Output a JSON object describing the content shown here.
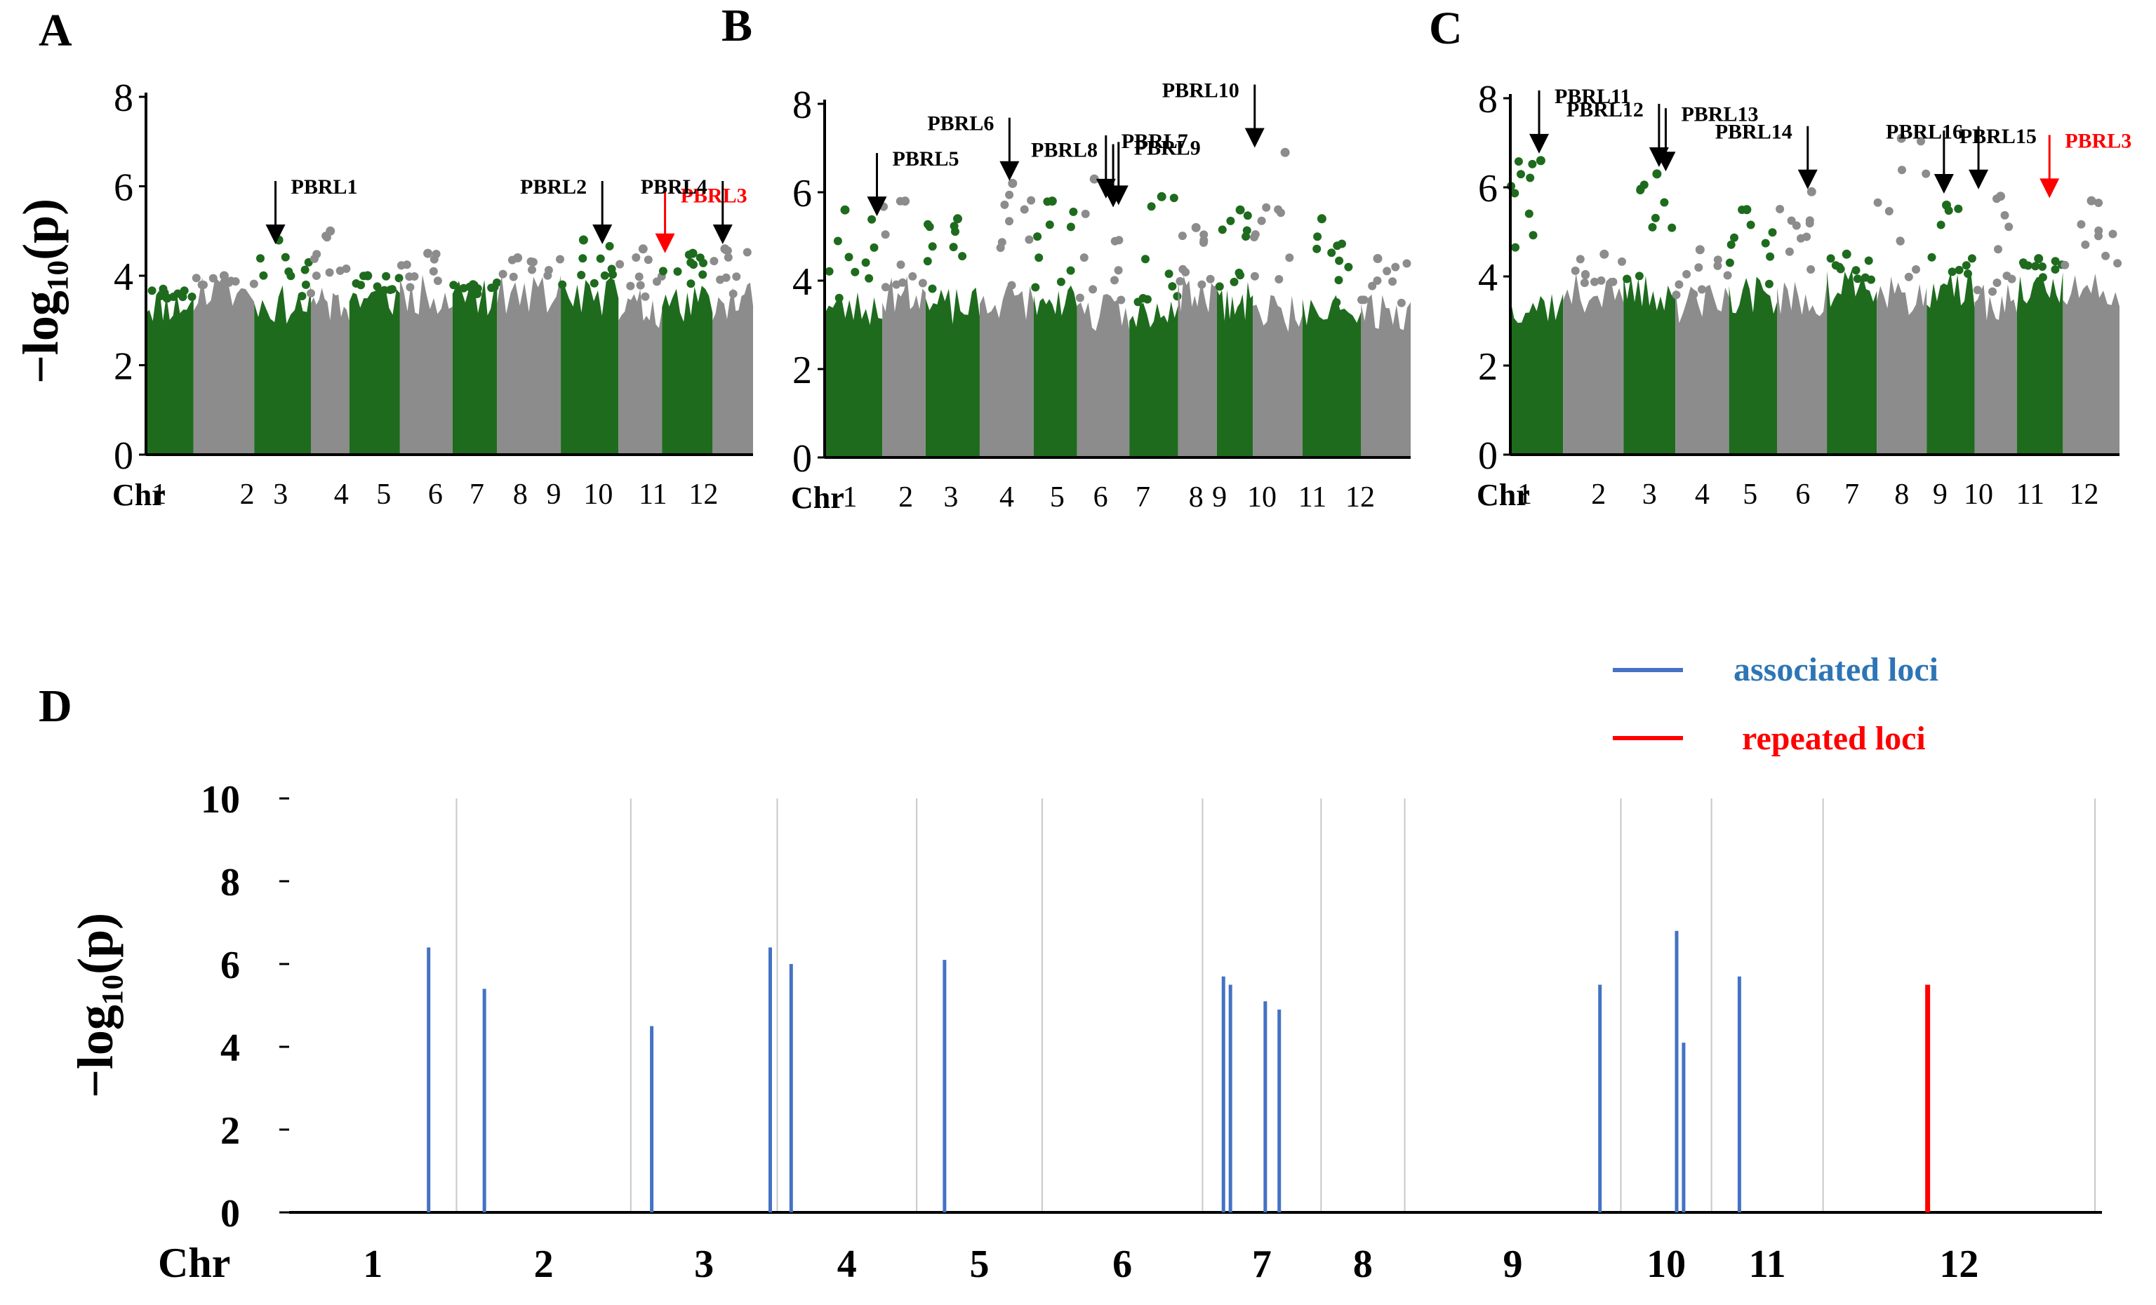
{
  "chart_data": [
    {
      "panel": "A",
      "type": "scatter",
      "subtype": "manhattan",
      "ylabel": "−log₁₀(p)",
      "ylim": [
        0,
        8
      ],
      "yticks": [
        "0",
        "2",
        "4",
        "6",
        "8"
      ],
      "xlabel": "Chr",
      "chromosomes": [
        "1",
        "2",
        "3",
        "4",
        "5",
        "6",
        "7",
        "8",
        "9",
        "10",
        "11",
        "12"
      ],
      "chr_colors": [
        "green",
        "gray",
        "green",
        "gray",
        "green",
        "gray",
        "green",
        "gray",
        "green",
        "gray",
        "green",
        "gray"
      ],
      "chr_bounds": [
        0.35,
        0.82,
        1.42,
        1.98,
        2.36,
        2.86,
        3.38,
        3.82,
        4.45,
        5.02,
        5.45,
        5.95,
        6.35
      ],
      "chr_label_pos": [
        0.48,
        1.35,
        1.68,
        2.28,
        2.7,
        3.21,
        3.62,
        4.05,
        4.38,
        4.82,
        5.36,
        5.86
      ],
      "chr_max": [
        3.5,
        4.0,
        4.8,
        5.0,
        4.0,
        4.5,
        3.6,
        4.4,
        4.8,
        4.6,
        4.5,
        4.6
      ],
      "annotations": [
        {
          "label": "PBRL1",
          "x": 1.63,
          "y": 4.55,
          "color": "black"
        },
        {
          "label": "PBRL2",
          "x": 4.86,
          "y": 4.55,
          "color": "black"
        },
        {
          "label": "PBRL3",
          "x": 5.48,
          "y": 4.35,
          "color": "red"
        },
        {
          "label": "PBRL4",
          "x": 6.05,
          "y": 4.55,
          "color": "black"
        }
      ]
    },
    {
      "panel": "B",
      "type": "scatter",
      "subtype": "manhattan",
      "ylim": [
        0,
        8
      ],
      "yticks": [
        "0",
        "2",
        "4",
        "6",
        "8"
      ],
      "xlabel": "Chr",
      "chromosomes": [
        "1",
        "2",
        "3",
        "4",
        "5",
        "6",
        "7",
        "8",
        "9",
        "10",
        "11",
        "12"
      ],
      "chr_colors": [
        "green",
        "gray",
        "green",
        "gray",
        "green",
        "gray",
        "green",
        "gray",
        "green",
        "gray",
        "green",
        "gray"
      ],
      "chr_bounds": [
        0.0,
        0.64,
        1.12,
        1.72,
        2.32,
        2.8,
        3.38,
        3.92,
        4.35,
        4.75,
        5.3,
        5.95,
        6.5
      ],
      "chr_label_pos": [
        0.28,
        0.9,
        1.4,
        2.02,
        2.58,
        3.06,
        3.53,
        4.12,
        4.38,
        4.85,
        5.41,
        5.94
      ],
      "chr_max": [
        5.6,
        5.8,
        5.4,
        6.2,
        5.8,
        6.3,
        5.9,
        5.2,
        5.6,
        6.9,
        5.4,
        4.5
      ],
      "annotations": [
        {
          "label": "PBRL5",
          "x": 0.58,
          "y": 5.3,
          "color": "black"
        },
        {
          "label": "PBRL6",
          "x": 2.05,
          "y": 6.1,
          "color": "black"
        },
        {
          "label": "PBRL7",
          "x": 3.12,
          "y": 5.7,
          "color": "black"
        },
        {
          "label": "PBRL8",
          "x": 3.2,
          "y": 5.5,
          "color": "black"
        },
        {
          "label": "PBRL9",
          "x": 3.26,
          "y": 5.55,
          "color": "black"
        },
        {
          "label": "PBRL10",
          "x": 4.77,
          "y": 6.85,
          "color": "black"
        }
      ]
    },
    {
      "panel": "C",
      "type": "scatter",
      "subtype": "manhattan",
      "ylim": [
        0,
        8
      ],
      "yticks": [
        "0",
        "2",
        "4",
        "6",
        "8"
      ],
      "xlabel": "Chr",
      "chromosomes": [
        "1",
        "2",
        "3",
        "4",
        "5",
        "6",
        "7",
        "8",
        "9",
        "10",
        "11",
        "12"
      ],
      "chr_colors": [
        "green",
        "gray",
        "green",
        "gray",
        "green",
        "gray",
        "green",
        "gray",
        "green",
        "gray",
        "green",
        "gray"
      ],
      "chr_bounds": [
        0.0,
        0.55,
        1.18,
        1.72,
        2.28,
        2.78,
        3.3,
        3.82,
        4.34,
        4.84,
        5.28,
        5.76,
        6.35
      ],
      "chr_label_pos": [
        0.15,
        0.92,
        1.45,
        2.0,
        2.5,
        3.05,
        3.56,
        4.08,
        4.48,
        4.88,
        5.42,
        5.98
      ],
      "chr_max": [
        6.6,
        4.5,
        6.3,
        4.6,
        5.5,
        5.9,
        4.5,
        7.1,
        5.6,
        5.8,
        4.4,
        5.7
      ],
      "annotations": [
        {
          "label": "PBRL11",
          "x": 0.3,
          "y": 6.6,
          "color": "black"
        },
        {
          "label": "PBRL12",
          "x": 1.55,
          "y": 6.3,
          "color": "black"
        },
        {
          "label": "PBRL13",
          "x": 1.62,
          "y": 6.2,
          "color": "black"
        },
        {
          "label": "PBRL14",
          "x": 3.1,
          "y": 5.8,
          "color": "black"
        },
        {
          "label": "PBRL15",
          "x": 4.52,
          "y": 5.7,
          "color": "black"
        },
        {
          "label": "PBRL16",
          "x": 4.88,
          "y": 5.8,
          "color": "black"
        },
        {
          "label": "PBRL3",
          "x": 5.62,
          "y": 5.6,
          "color": "red"
        }
      ]
    },
    {
      "panel": "D",
      "type": "bar",
      "subtype": "locus-lines",
      "ylabel": "−log₁₀(p)",
      "ylim": [
        0,
        10
      ],
      "yticks": [
        "0",
        "2",
        "4",
        "6",
        "8",
        "10"
      ],
      "xlabel": "Chr",
      "xlim": [
        0,
        13.0
      ],
      "chromosomes": [
        "1",
        "2",
        "3",
        "4",
        "5",
        "6",
        "7",
        "8",
        "9",
        "10",
        "11",
        "12"
      ],
      "chr_bounds": [
        0,
        1.2,
        2.45,
        3.5,
        4.5,
        5.4,
        6.55,
        7.4,
        8.0,
        9.55,
        10.2,
        11.0,
        12.95
      ],
      "legend": [
        {
          "label": "associated loci",
          "color": "#4472c4"
        },
        {
          "label": "repeated loci",
          "color": "#ff0000"
        }
      ],
      "legend_position": "top-right",
      "series": [
        {
          "name": "associated loci",
          "color": "#4472c4",
          "x": [
            1.0,
            1.4,
            2.6,
            3.45,
            3.6,
            4.7,
            6.7,
            6.75,
            7.0,
            7.1,
            9.4,
            9.95,
            10.0,
            10.4
          ],
          "values": [
            6.4,
            5.4,
            4.5,
            6.4,
            6.0,
            6.1,
            5.7,
            5.5,
            5.1,
            4.9,
            5.5,
            6.8,
            4.1,
            5.7
          ]
        },
        {
          "name": "repeated loci",
          "color": "#ff0000",
          "x": [
            11.75
          ],
          "values": [
            5.5
          ]
        }
      ]
    }
  ]
}
